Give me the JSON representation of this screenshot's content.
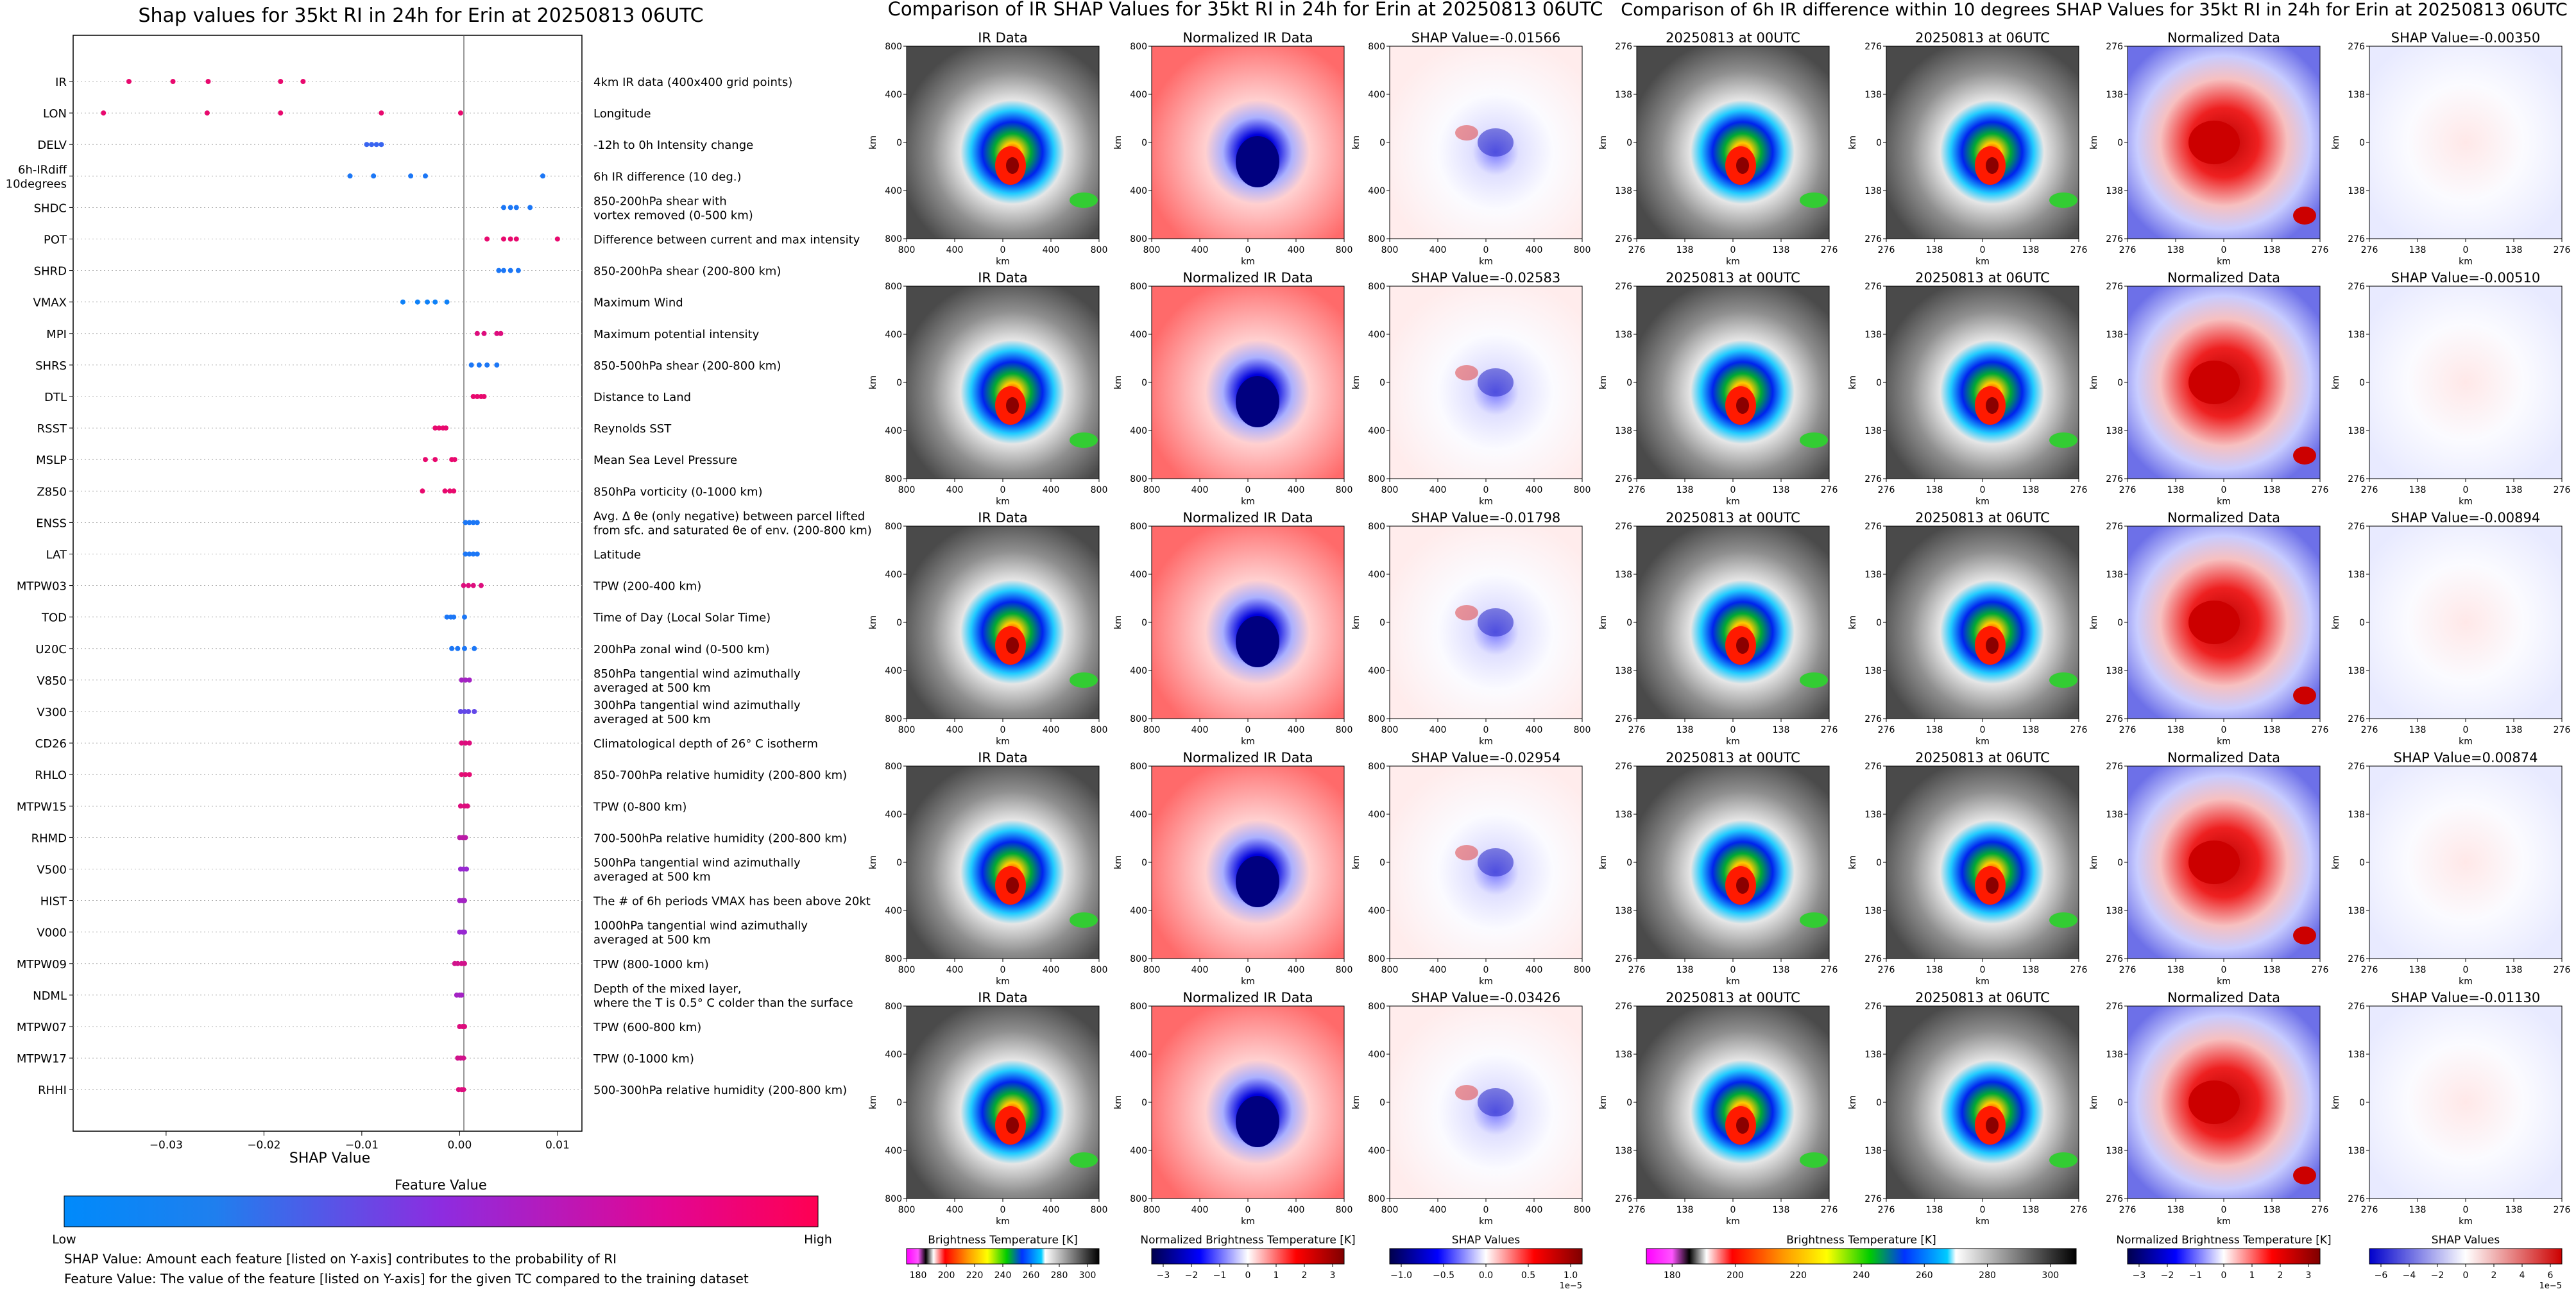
{
  "left_panel": {
    "title": "Shap values for 35kt RI in 24h for Erin at 20250813 06UTC",
    "xlabel": "SHAP Value",
    "xticks": [
      -0.03,
      -0.02,
      -0.01,
      0.0,
      0.01
    ],
    "xtick_labels": [
      "−0.03",
      "−0.02",
      "−0.01",
      "0.00",
      "0.01"
    ],
    "xlim": [
      -0.0395,
      0.0125
    ],
    "colorbar_title": "Feature Value",
    "colorbar_low": "Low",
    "colorbar_high": "High",
    "note_1": "SHAP Value: Amount each feature [listed on Y-axis] contributes to the probability of RI",
    "note_2": "Feature Value: The value of the feature [listed on Y-axis] for the given TC compared to the training dataset",
    "colors": {
      "low": "#1e88e5",
      "high": "#ff0052",
      "mid": "#a020c0"
    }
  },
  "middle_panel": {
    "title": "Comparison of IR SHAP Values for 35kt RI in 24h for Erin at 20250813 06UTC",
    "col_titles": [
      "IR Data",
      "Normalized IR Data"
    ],
    "shap_titles": [
      "SHAP Value=-0.01566",
      "SHAP Value=-0.02583",
      "SHAP Value=-0.01798",
      "SHAP Value=-0.02954",
      "SHAP Value=-0.03426"
    ],
    "axis_label": "km",
    "tick_labels": [
      "800",
      "400",
      "0",
      "400",
      "800"
    ],
    "colorbars": [
      {
        "label": "Brightness Temperature [K]",
        "ticks": [
          "180",
          "200",
          "220",
          "240",
          "260",
          "280",
          "300"
        ]
      },
      {
        "label": "Normalized Brightness Temperature [K]",
        "ticks": [
          "−3",
          "−2",
          "−1",
          "0",
          "1",
          "2",
          "3"
        ]
      },
      {
        "label": "SHAP Values",
        "ticks": [
          "−1.0",
          "−0.5",
          "0.0",
          "0.5",
          "1.0"
        ],
        "exponent": "1e−5"
      }
    ]
  },
  "right_panel": {
    "title": "Comparison of 6h IR difference within 10 degrees SHAP Values for 35kt RI in 24h for Erin at 20250813 06UTC",
    "col_titles": [
      "20250813 at 00UTC",
      "20250813 at 06UTC",
      "Normalized Data"
    ],
    "shap_titles": [
      "SHAP Value=-0.00350",
      "SHAP Value=-0.00510",
      "SHAP Value=-0.00894",
      "SHAP Value=0.00874",
      "SHAP Value=-0.01130"
    ],
    "axis_label": "km",
    "tick_labels": [
      "276",
      "138",
      "0",
      "138",
      "276"
    ],
    "colorbars": [
      {
        "label": "Brightness Temperature [K]",
        "ticks": [
          "180",
          "200",
          "220",
          "240",
          "260",
          "280",
          "300"
        ]
      },
      {
        "label": "Normalized Brightness Temperature [K]",
        "ticks": [
          "−3",
          "−2",
          "−1",
          "0",
          "1",
          "2",
          "3"
        ]
      },
      {
        "label": "SHAP Values",
        "ticks": [
          "−6",
          "−4",
          "−2",
          "0",
          "2",
          "4",
          "6"
        ],
        "exponent": "1e−5"
      }
    ]
  },
  "chart_data": {
    "type": "scatter",
    "features": [
      {
        "name": "IR",
        "desc": [
          "4km IR data (400x400 grid points)"
        ],
        "points": [
          [
            -0.0338,
            0.9
          ],
          [
            -0.0293,
            0.9
          ],
          [
            -0.0257,
            0.9
          ],
          [
            -0.0183,
            0.9
          ],
          [
            -0.016,
            0.9
          ]
        ]
      },
      {
        "name": "LON",
        "desc": [
          "Longitude"
        ],
        "points": [
          [
            -0.0364,
            0.9
          ],
          [
            -0.0258,
            0.9
          ],
          [
            -0.0183,
            0.9
          ],
          [
            -0.008,
            0.9
          ],
          [
            0.0001,
            0.9
          ]
        ]
      },
      {
        "name": "DELV",
        "desc": [
          "-12h to 0h Intensity change"
        ],
        "points": [
          [
            -0.0095,
            0.2
          ],
          [
            -0.009,
            0.2
          ],
          [
            -0.0085,
            0.2
          ],
          [
            -0.008,
            0.2
          ]
        ]
      },
      {
        "name": "6h-IRdiff_10degrees",
        "label": [
          "6h-IRdiff",
          "10degrees"
        ],
        "desc": [
          "6h IR difference (10 deg.)"
        ],
        "points": [
          [
            -0.0112,
            0.1
          ],
          [
            -0.0088,
            0.1
          ],
          [
            -0.005,
            0.1
          ],
          [
            -0.0035,
            0.1
          ],
          [
            0.0085,
            0.1
          ]
        ]
      },
      {
        "name": "SHDC",
        "desc": [
          "850-200hPa shear with",
          "vortex removed (0-500 km)"
        ],
        "points": [
          [
            0.0045,
            0.1
          ],
          [
            0.0052,
            0.1
          ],
          [
            0.0058,
            0.1
          ],
          [
            0.0072,
            0.1
          ]
        ]
      },
      {
        "name": "POT",
        "desc": [
          "Difference between current and max intensity"
        ],
        "points": [
          [
            0.0028,
            0.9
          ],
          [
            0.0045,
            0.9
          ],
          [
            0.0052,
            0.9
          ],
          [
            0.0058,
            0.9
          ],
          [
            0.01,
            0.9
          ]
        ]
      },
      {
        "name": "SHRD",
        "desc": [
          "850-200hPa shear (200-800 km)"
        ],
        "points": [
          [
            0.004,
            0.1
          ],
          [
            0.0045,
            0.1
          ],
          [
            0.0052,
            0.1
          ],
          [
            0.006,
            0.1
          ]
        ]
      },
      {
        "name": "VMAX",
        "desc": [
          "Maximum Wind"
        ],
        "points": [
          [
            -0.0058,
            0.05
          ],
          [
            -0.0043,
            0.05
          ],
          [
            -0.0033,
            0.05
          ],
          [
            -0.0025,
            0.05
          ],
          [
            -0.0013,
            0.05
          ]
        ]
      },
      {
        "name": "MPI",
        "desc": [
          "Maximum potential intensity"
        ],
        "points": [
          [
            0.0018,
            0.85
          ],
          [
            0.0025,
            0.85
          ],
          [
            0.0038,
            0.85
          ],
          [
            0.0042,
            0.85
          ]
        ]
      },
      {
        "name": "SHRS",
        "desc": [
          "850-500hPa shear (200-800 km)"
        ],
        "points": [
          [
            0.0012,
            0.1
          ],
          [
            0.002,
            0.1
          ],
          [
            0.0028,
            0.1
          ],
          [
            0.0038,
            0.1
          ]
        ]
      },
      {
        "name": "DTL",
        "desc": [
          "Distance to Land"
        ],
        "points": [
          [
            0.0014,
            0.9
          ],
          [
            0.0018,
            0.9
          ],
          [
            0.0022,
            0.9
          ],
          [
            0.0025,
            0.9
          ]
        ]
      },
      {
        "name": "RSST",
        "desc": [
          "Reynolds SST"
        ],
        "points": [
          [
            -0.0025,
            0.9
          ],
          [
            -0.0021,
            0.9
          ],
          [
            -0.0017,
            0.9
          ],
          [
            -0.0014,
            0.9
          ]
        ]
      },
      {
        "name": "MSLP",
        "desc": [
          "Mean Sea Level Pressure"
        ],
        "points": [
          [
            -0.0035,
            0.9
          ],
          [
            -0.0025,
            0.9
          ],
          [
            -0.0008,
            0.9
          ],
          [
            -0.0005,
            0.9
          ]
        ]
      },
      {
        "name": "Z850",
        "desc": [
          "850hPa vorticity (0-1000 km)"
        ],
        "points": [
          [
            -0.0038,
            0.9
          ],
          [
            -0.0015,
            0.9
          ],
          [
            -0.001,
            0.9
          ],
          [
            -0.0006,
            0.9
          ]
        ]
      },
      {
        "name": "ENSS",
        "desc": [
          "Avg. Δ θe (only negative) between parcel lifted",
          "from sfc. and saturated θe of env. (200-800 km)"
        ],
        "points": [
          [
            0.0006,
            0.1
          ],
          [
            0.001,
            0.1
          ],
          [
            0.0014,
            0.1
          ],
          [
            0.0018,
            0.1
          ]
        ]
      },
      {
        "name": "LAT",
        "desc": [
          "Latitude"
        ],
        "points": [
          [
            0.0006,
            0.1
          ],
          [
            0.001,
            0.1
          ],
          [
            0.0014,
            0.1
          ],
          [
            0.0018,
            0.1
          ]
        ]
      },
      {
        "name": "MTPW03",
        "desc": [
          "TPW (200-400 km)"
        ],
        "points": [
          [
            0.0004,
            0.85
          ],
          [
            0.0009,
            0.85
          ],
          [
            0.0014,
            0.85
          ],
          [
            0.0022,
            0.85
          ]
        ]
      },
      {
        "name": "TOD",
        "desc": [
          "Time of Day (Local Solar Time)"
        ],
        "points": [
          [
            -0.0013,
            0.1
          ],
          [
            -0.0009,
            0.1
          ],
          [
            -0.0006,
            0.1
          ],
          [
            0.0005,
            0.1
          ]
        ]
      },
      {
        "name": "U20C",
        "desc": [
          "200hPa zonal wind (0-500 km)"
        ],
        "points": [
          [
            -0.0008,
            0.1
          ],
          [
            -0.0002,
            0.1
          ],
          [
            0.0005,
            0.1
          ],
          [
            0.0015,
            0.1
          ]
        ]
      },
      {
        "name": "V850",
        "desc": [
          "850hPa tangential wind azimuthally",
          "averaged at 500 km"
        ],
        "points": [
          [
            0.0002,
            0.6
          ],
          [
            0.0006,
            0.6
          ],
          [
            0.001,
            0.6
          ]
        ]
      },
      {
        "name": "V300",
        "desc": [
          "300hPa tangential wind azimuthally",
          "averaged at 500 km"
        ],
        "points": [
          [
            0.0001,
            0.35
          ],
          [
            0.0005,
            0.35
          ],
          [
            0.0009,
            0.35
          ],
          [
            0.0015,
            0.35
          ]
        ]
      },
      {
        "name": "CD26",
        "desc": [
          "Climatological depth of 26° C isotherm"
        ],
        "points": [
          [
            0.0002,
            0.85
          ],
          [
            0.0006,
            0.85
          ],
          [
            0.001,
            0.85
          ]
        ]
      },
      {
        "name": "RHLO",
        "desc": [
          "850-700hPa relative humidity (200-800 km)"
        ],
        "points": [
          [
            0.0002,
            0.88
          ],
          [
            0.0006,
            0.88
          ],
          [
            0.001,
            0.88
          ]
        ]
      },
      {
        "name": "MTPW15",
        "desc": [
          "TPW (0-800 km)"
        ],
        "points": [
          [
            0.0001,
            0.85
          ],
          [
            0.0005,
            0.85
          ],
          [
            0.0008,
            0.85
          ]
        ]
      },
      {
        "name": "RHMD",
        "desc": [
          "700-500hPa relative humidity (200-800 km)"
        ],
        "points": [
          [
            0.0,
            0.7
          ],
          [
            0.0003,
            0.7
          ],
          [
            0.0006,
            0.7
          ]
        ]
      },
      {
        "name": "V500",
        "desc": [
          "500hPa tangential wind azimuthally",
          "averaged at 500 km"
        ],
        "points": [
          [
            0.0001,
            0.55
          ],
          [
            0.0004,
            0.55
          ],
          [
            0.0007,
            0.55
          ]
        ]
      },
      {
        "name": "HIST",
        "desc": [
          "The # of 6h periods VMAX has been above 20kt"
        ],
        "points": [
          [
            0.0,
            0.6
          ],
          [
            0.0003,
            0.6
          ],
          [
            0.0005,
            0.6
          ]
        ]
      },
      {
        "name": "V000",
        "desc": [
          "1000hPa tangential wind azimuthally",
          "averaged at 500 km"
        ],
        "points": [
          [
            0.0,
            0.55
          ],
          [
            0.0003,
            0.55
          ],
          [
            0.0005,
            0.55
          ]
        ]
      },
      {
        "name": "MTPW09",
        "desc": [
          "TPW (800-1000 km)"
        ],
        "points": [
          [
            -0.0005,
            0.8
          ],
          [
            -0.0002,
            0.8
          ],
          [
            0.0002,
            0.8
          ],
          [
            0.0005,
            0.8
          ]
        ]
      },
      {
        "name": "NDML",
        "desc": [
          "Depth of the mixed layer,",
          "where the T is 0.5° C colder than the surface"
        ],
        "points": [
          [
            -0.0003,
            0.6
          ],
          [
            0.0,
            0.6
          ],
          [
            0.0002,
            0.6
          ]
        ]
      },
      {
        "name": "MTPW07",
        "desc": [
          "TPW (600-800 km)"
        ],
        "points": [
          [
            0.0,
            0.85
          ],
          [
            0.0003,
            0.85
          ],
          [
            0.0005,
            0.85
          ]
        ]
      },
      {
        "name": "MTPW17",
        "desc": [
          "TPW (0-1000 km)"
        ],
        "points": [
          [
            -0.0002,
            0.8
          ],
          [
            0.0001,
            0.8
          ],
          [
            0.0004,
            0.8
          ]
        ]
      },
      {
        "name": "RHHI",
        "desc": [
          "500-300hPa relative humidity (200-800 km)"
        ],
        "points": [
          [
            -0.0001,
            0.85
          ],
          [
            0.0002,
            0.85
          ],
          [
            0.0004,
            0.85
          ]
        ]
      }
    ]
  }
}
